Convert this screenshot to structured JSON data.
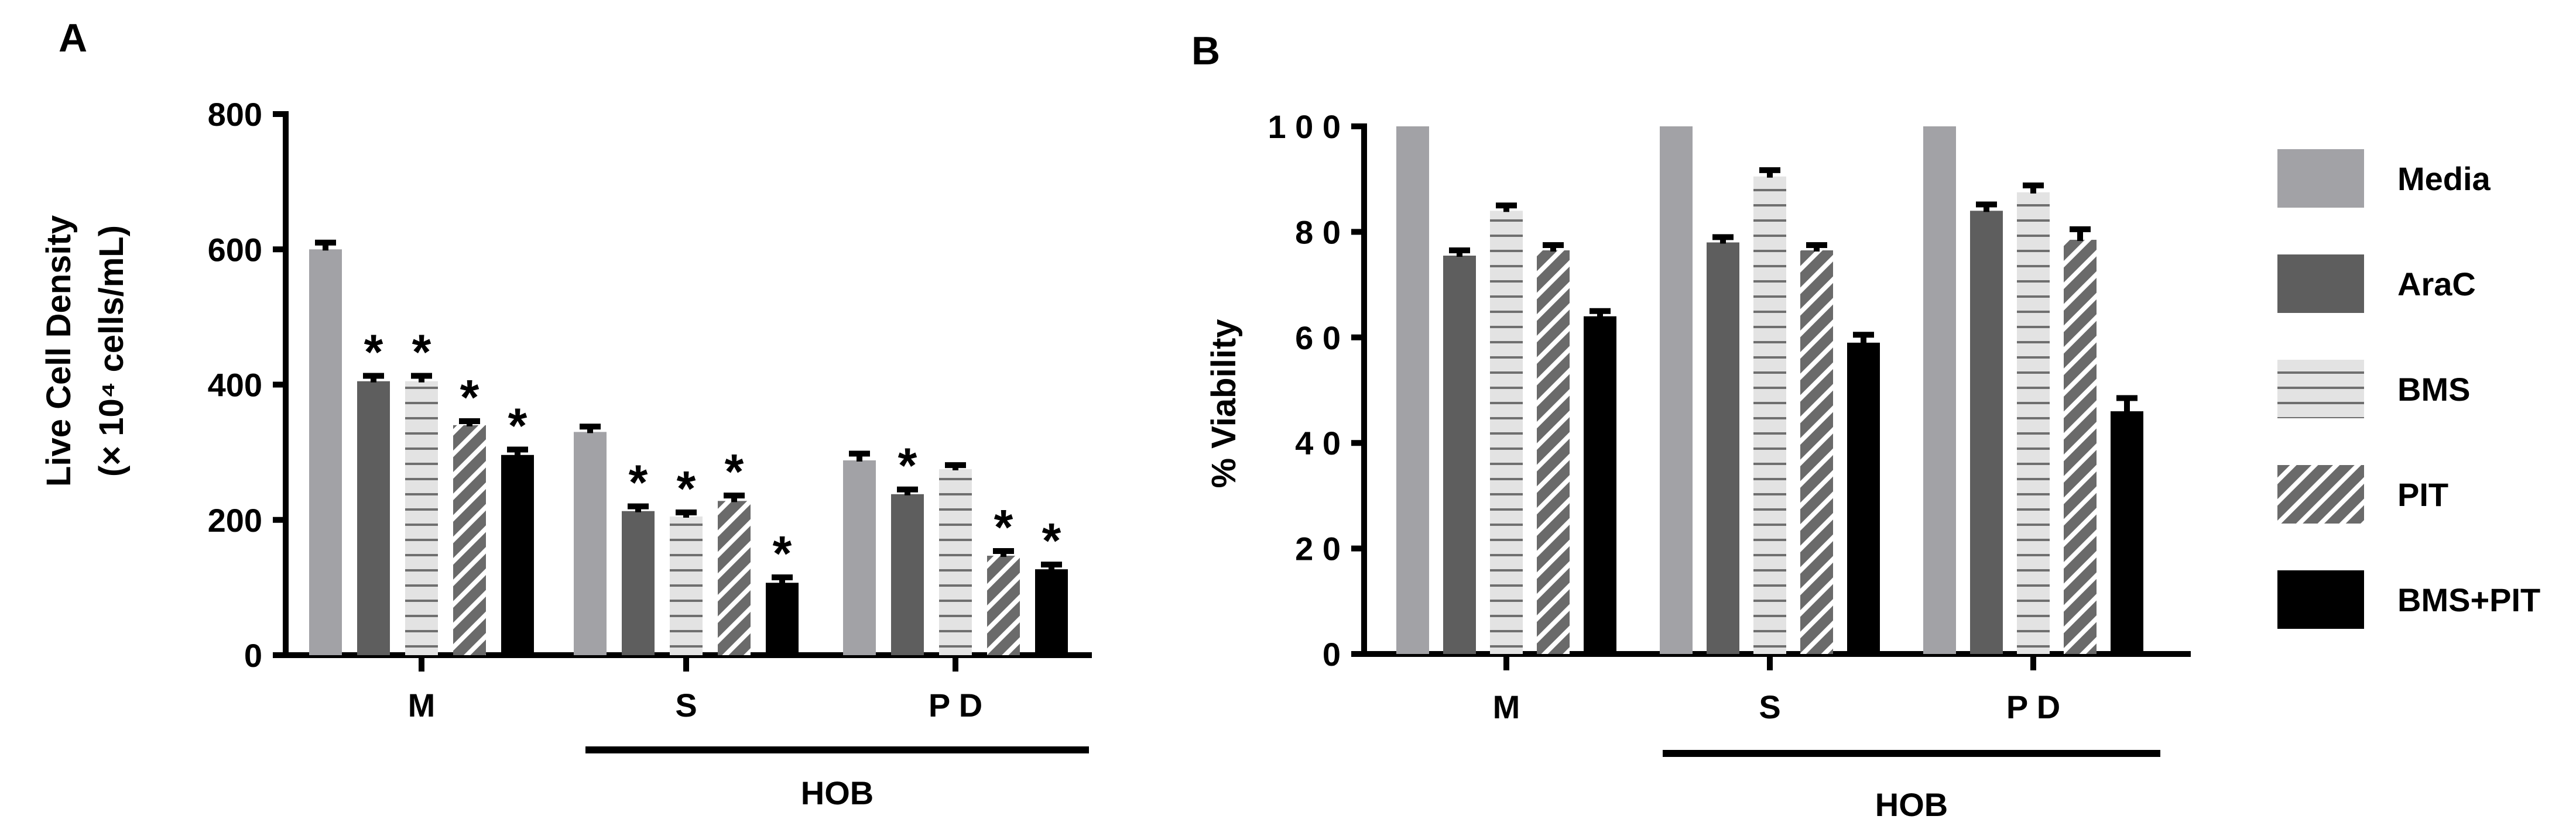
{
  "colors": {
    "Media": "#a2a2a6",
    "AraC": "#5e5e5e",
    "BMS": "#e3e3e3",
    "PIT": "#6a6a6a",
    "BMS+PIT": "#000000",
    "stripe_light": "#ffffff",
    "hline": "#6f6f6f"
  },
  "legend": {
    "items": [
      {
        "name": "Media",
        "label": "Media"
      },
      {
        "name": "AraC",
        "label": "AraC"
      },
      {
        "name": "BMS",
        "label": "BMS"
      },
      {
        "name": "PIT",
        "label": "PIT"
      },
      {
        "name": "BMS+PIT",
        "label": "BMS+PIT"
      }
    ]
  },
  "chart_data": [
    {
      "panel": "A",
      "type": "bar",
      "ylabel_line1": "Live Cell Density",
      "ylabel_line2": "(× 10⁴ cells/mL)",
      "ylim": [
        0,
        800
      ],
      "yticks": [
        0,
        200,
        400,
        600,
        800
      ],
      "ytick_labels": [
        "0",
        "200",
        "400",
        "600",
        "800"
      ],
      "categories": [
        "M",
        "S",
        "P D"
      ],
      "group_label": "HOB",
      "series": [
        {
          "name": "Media",
          "values": [
            600,
            330,
            288
          ],
          "errors": [
            10,
            8,
            10
          ],
          "significant": [
            false,
            false,
            false
          ]
        },
        {
          "name": "AraC",
          "values": [
            405,
            213,
            238
          ],
          "errors": [
            8,
            7,
            7
          ],
          "significant": [
            true,
            true,
            true
          ]
        },
        {
          "name": "BMS",
          "values": [
            405,
            205,
            275
          ],
          "errors": [
            8,
            6,
            6
          ],
          "significant": [
            true,
            true,
            false
          ]
        },
        {
          "name": "PIT",
          "values": [
            340,
            228,
            147
          ],
          "errors": [
            6,
            8,
            7
          ],
          "significant": [
            true,
            true,
            true
          ]
        },
        {
          "name": "BMS+PIT",
          "values": [
            296,
            107,
            127
          ],
          "errors": [
            8,
            8,
            7
          ],
          "significant": [
            true,
            true,
            true
          ]
        }
      ]
    },
    {
      "panel": "B",
      "type": "bar",
      "ylabel": "% Viability",
      "ylim": [
        0,
        100
      ],
      "yticks": [
        0,
        20,
        40,
        60,
        80,
        100
      ],
      "ytick_labels": [
        "0",
        "2 0",
        "4 0",
        "6 0",
        "8 0",
        "1 0 0"
      ],
      "categories": [
        "M",
        "S",
        "P D"
      ],
      "group_label": "HOB",
      "series": [
        {
          "name": "Media",
          "values": [
            100,
            100,
            100
          ],
          "errors": [
            0,
            0,
            0
          ],
          "significant": [
            false,
            false,
            false
          ]
        },
        {
          "name": "AraC",
          "values": [
            75.5,
            78,
            84
          ],
          "errors": [
            1,
            1,
            1.2
          ],
          "significant": [
            false,
            false,
            false
          ]
        },
        {
          "name": "BMS",
          "values": [
            84,
            90.5,
            87.5
          ],
          "errors": [
            1,
            1.2,
            1.3
          ],
          "significant": [
            false,
            false,
            false
          ]
        },
        {
          "name": "PIT",
          "values": [
            76.5,
            76.5,
            78.5
          ],
          "errors": [
            1,
            1,
            2
          ],
          "significant": [
            false,
            false,
            false
          ]
        },
        {
          "name": "BMS+PIT",
          "values": [
            64,
            59,
            46
          ],
          "errors": [
            1,
            1.5,
            2.5
          ],
          "significant": [
            false,
            false,
            false
          ]
        }
      ]
    }
  ]
}
